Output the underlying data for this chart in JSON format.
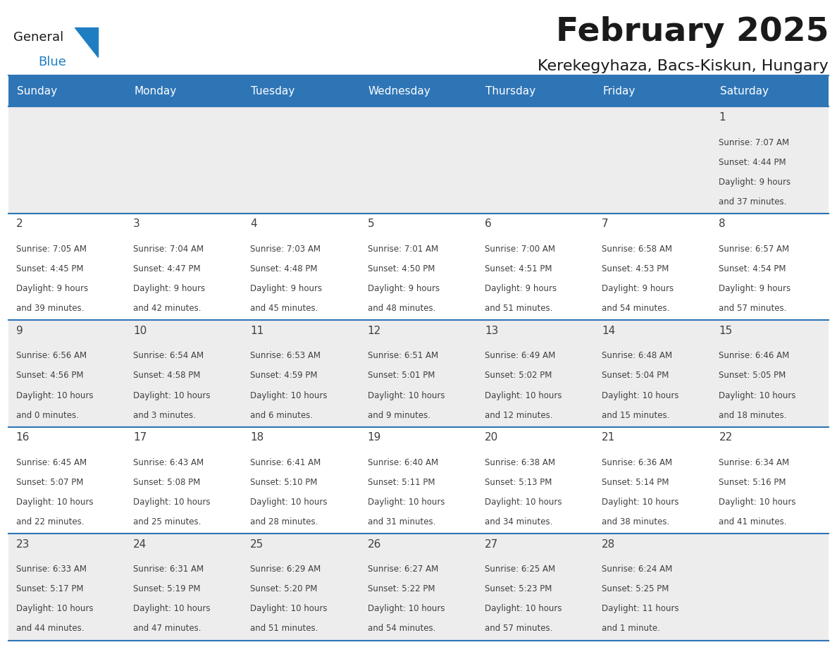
{
  "title": "February 2025",
  "subtitle": "Kerekegyhaza, Bacs-Kiskun, Hungary",
  "days_of_week": [
    "Sunday",
    "Monday",
    "Tuesday",
    "Wednesday",
    "Thursday",
    "Friday",
    "Saturday"
  ],
  "header_bg": "#2E75B6",
  "header_text": "#FFFFFF",
  "row0_bg": "#EDEDED",
  "row1_bg": "#FFFFFF",
  "cell_border_color": "#AAAAAA",
  "row_line_color": "#2E75B6",
  "day_num_color": "#404040",
  "cell_text_color": "#404040",
  "title_color": "#1a1a1a",
  "subtitle_color": "#1a1a1a",
  "logo_general_color": "#1a1a1a",
  "logo_blue_color": "#1F7EC2",
  "calendar_data": [
    {
      "day": 1,
      "col": 6,
      "row": 0,
      "sunrise": "7:07 AM",
      "sunset": "4:44 PM",
      "daylight": "9 hours and 37 minutes."
    },
    {
      "day": 2,
      "col": 0,
      "row": 1,
      "sunrise": "7:05 AM",
      "sunset": "4:45 PM",
      "daylight": "9 hours and 39 minutes."
    },
    {
      "day": 3,
      "col": 1,
      "row": 1,
      "sunrise": "7:04 AM",
      "sunset": "4:47 PM",
      "daylight": "9 hours and 42 minutes."
    },
    {
      "day": 4,
      "col": 2,
      "row": 1,
      "sunrise": "7:03 AM",
      "sunset": "4:48 PM",
      "daylight": "9 hours and 45 minutes."
    },
    {
      "day": 5,
      "col": 3,
      "row": 1,
      "sunrise": "7:01 AM",
      "sunset": "4:50 PM",
      "daylight": "9 hours and 48 minutes."
    },
    {
      "day": 6,
      "col": 4,
      "row": 1,
      "sunrise": "7:00 AM",
      "sunset": "4:51 PM",
      "daylight": "9 hours and 51 minutes."
    },
    {
      "day": 7,
      "col": 5,
      "row": 1,
      "sunrise": "6:58 AM",
      "sunset": "4:53 PM",
      "daylight": "9 hours and 54 minutes."
    },
    {
      "day": 8,
      "col": 6,
      "row": 1,
      "sunrise": "6:57 AM",
      "sunset": "4:54 PM",
      "daylight": "9 hours and 57 minutes."
    },
    {
      "day": 9,
      "col": 0,
      "row": 2,
      "sunrise": "6:56 AM",
      "sunset": "4:56 PM",
      "daylight": "10 hours and 0 minutes."
    },
    {
      "day": 10,
      "col": 1,
      "row": 2,
      "sunrise": "6:54 AM",
      "sunset": "4:58 PM",
      "daylight": "10 hours and 3 minutes."
    },
    {
      "day": 11,
      "col": 2,
      "row": 2,
      "sunrise": "6:53 AM",
      "sunset": "4:59 PM",
      "daylight": "10 hours and 6 minutes."
    },
    {
      "day": 12,
      "col": 3,
      "row": 2,
      "sunrise": "6:51 AM",
      "sunset": "5:01 PM",
      "daylight": "10 hours and 9 minutes."
    },
    {
      "day": 13,
      "col": 4,
      "row": 2,
      "sunrise": "6:49 AM",
      "sunset": "5:02 PM",
      "daylight": "10 hours and 12 minutes."
    },
    {
      "day": 14,
      "col": 5,
      "row": 2,
      "sunrise": "6:48 AM",
      "sunset": "5:04 PM",
      "daylight": "10 hours and 15 minutes."
    },
    {
      "day": 15,
      "col": 6,
      "row": 2,
      "sunrise": "6:46 AM",
      "sunset": "5:05 PM",
      "daylight": "10 hours and 18 minutes."
    },
    {
      "day": 16,
      "col": 0,
      "row": 3,
      "sunrise": "6:45 AM",
      "sunset": "5:07 PM",
      "daylight": "10 hours and 22 minutes."
    },
    {
      "day": 17,
      "col": 1,
      "row": 3,
      "sunrise": "6:43 AM",
      "sunset": "5:08 PM",
      "daylight": "10 hours and 25 minutes."
    },
    {
      "day": 18,
      "col": 2,
      "row": 3,
      "sunrise": "6:41 AM",
      "sunset": "5:10 PM",
      "daylight": "10 hours and 28 minutes."
    },
    {
      "day": 19,
      "col": 3,
      "row": 3,
      "sunrise": "6:40 AM",
      "sunset": "5:11 PM",
      "daylight": "10 hours and 31 minutes."
    },
    {
      "day": 20,
      "col": 4,
      "row": 3,
      "sunrise": "6:38 AM",
      "sunset": "5:13 PM",
      "daylight": "10 hours and 34 minutes."
    },
    {
      "day": 21,
      "col": 5,
      "row": 3,
      "sunrise": "6:36 AM",
      "sunset": "5:14 PM",
      "daylight": "10 hours and 38 minutes."
    },
    {
      "day": 22,
      "col": 6,
      "row": 3,
      "sunrise": "6:34 AM",
      "sunset": "5:16 PM",
      "daylight": "10 hours and 41 minutes."
    },
    {
      "day": 23,
      "col": 0,
      "row": 4,
      "sunrise": "6:33 AM",
      "sunset": "5:17 PM",
      "daylight": "10 hours and 44 minutes."
    },
    {
      "day": 24,
      "col": 1,
      "row": 4,
      "sunrise": "6:31 AM",
      "sunset": "5:19 PM",
      "daylight": "10 hours and 47 minutes."
    },
    {
      "day": 25,
      "col": 2,
      "row": 4,
      "sunrise": "6:29 AM",
      "sunset": "5:20 PM",
      "daylight": "10 hours and 51 minutes."
    },
    {
      "day": 26,
      "col": 3,
      "row": 4,
      "sunrise": "6:27 AM",
      "sunset": "5:22 PM",
      "daylight": "10 hours and 54 minutes."
    },
    {
      "day": 27,
      "col": 4,
      "row": 4,
      "sunrise": "6:25 AM",
      "sunset": "5:23 PM",
      "daylight": "10 hours and 57 minutes."
    },
    {
      "day": 28,
      "col": 5,
      "row": 4,
      "sunrise": "6:24 AM",
      "sunset": "5:25 PM",
      "daylight": "11 hours and 1 minute."
    }
  ],
  "num_rows": 5,
  "num_cols": 7,
  "fig_width": 11.88,
  "fig_height": 9.18
}
